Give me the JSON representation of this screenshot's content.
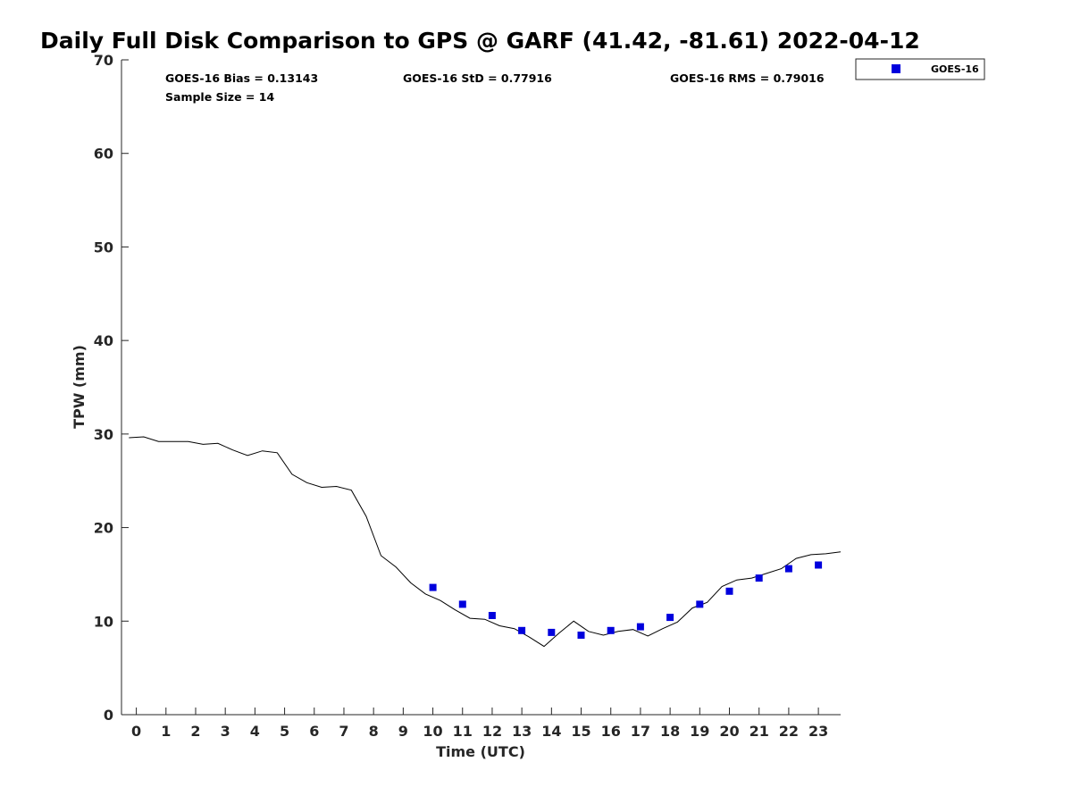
{
  "chart_data": {
    "type": "line",
    "title": "Daily Full Disk Comparison to GPS @ GARF (41.42, -81.61) 2022-04-12",
    "xlabel": "Time (UTC)",
    "ylabel": "TPW (mm)",
    "xlim": [
      -0.5,
      23.75
    ],
    "ylim": [
      0,
      70
    ],
    "xticks": [
      0,
      1,
      2,
      3,
      4,
      5,
      6,
      7,
      8,
      9,
      10,
      11,
      12,
      13,
      14,
      15,
      16,
      17,
      18,
      19,
      20,
      21,
      22,
      23
    ],
    "yticks": [
      0,
      10,
      20,
      30,
      40,
      50,
      60,
      70
    ],
    "grid": false,
    "legend": {
      "position": "top-right-outside",
      "entries": [
        "GOES-16"
      ]
    },
    "stats": {
      "bias": "GOES-16 Bias = 0.13143",
      "std": "GOES-16 StD = 0.77916",
      "rms": "GOES-16 RMS = 0.79016",
      "sample": "Sample Size = 14"
    },
    "series": [
      {
        "kind": "line",
        "color": "#000000",
        "x": [
          -0.25,
          0.25,
          0.75,
          1.25,
          1.75,
          2.25,
          2.75,
          3.25,
          3.75,
          4.25,
          4.75,
          5.25,
          5.75,
          6.25,
          6.75,
          7.25,
          7.75,
          8.25,
          8.75,
          9.25,
          9.75,
          10.25,
          10.75,
          11.25,
          11.75,
          12.25,
          12.75,
          13.25,
          13.75,
          14.25,
          14.75,
          15.25,
          15.75,
          16.25,
          16.75,
          17.25,
          17.75,
          18.25,
          18.75,
          19.25,
          19.75,
          20.25,
          20.75,
          21.25,
          21.75,
          22.25,
          22.75,
          23.25,
          23.75
        ],
        "y": [
          29.6,
          29.7,
          29.2,
          29.2,
          29.2,
          28.9,
          29.0,
          28.3,
          27.7,
          28.2,
          28.0,
          25.7,
          24.8,
          24.3,
          24.4,
          24.0,
          21.2,
          17.0,
          15.8,
          14.1,
          12.9,
          12.2,
          11.2,
          10.3,
          10.2,
          9.5,
          9.2,
          8.3,
          7.3,
          8.7,
          10.0,
          8.9,
          8.5,
          8.9,
          9.1,
          8.4,
          9.2,
          9.9,
          11.4,
          12.0,
          13.7,
          14.4,
          14.6,
          15.1,
          15.6,
          16.7,
          17.1,
          17.2,
          17.4
        ]
      },
      {
        "name": "GOES-16",
        "kind": "scatter",
        "color": "#0000dd",
        "x": [
          10,
          11,
          12,
          13,
          14,
          15,
          16,
          17,
          18,
          19,
          20,
          21,
          22,
          23
        ],
        "y": [
          13.6,
          11.8,
          10.6,
          9.0,
          8.8,
          8.5,
          9.0,
          9.4,
          10.4,
          11.8,
          13.2,
          14.6,
          15.6,
          16.0
        ]
      }
    ]
  }
}
